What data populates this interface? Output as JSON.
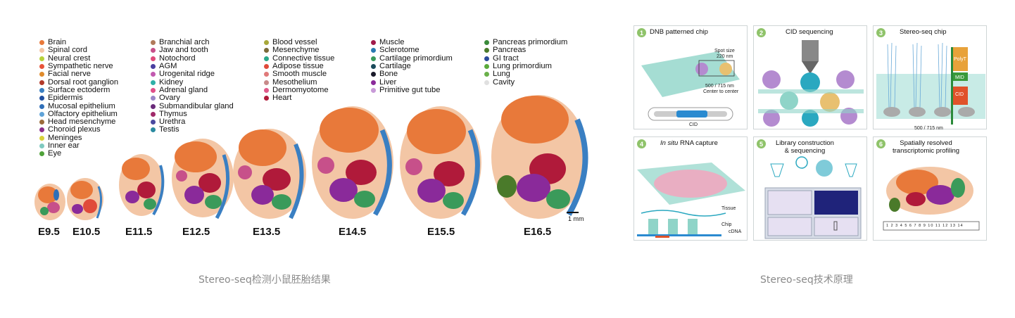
{
  "left_figure": {
    "legend_columns": [
      [
        {
          "label": "Brain",
          "color": "#e8793a"
        },
        {
          "label": "Spinal cord",
          "color": "#f3c6a5"
        },
        {
          "label": "Neural crest",
          "color": "#b7d23a"
        },
        {
          "label": "Sympathetic nerve",
          "color": "#e8543a"
        },
        {
          "label": "Facial nerve",
          "color": "#e08b2c"
        },
        {
          "label": "Dorsal root ganglion",
          "color": "#b23a2a"
        },
        {
          "label": "Surface ectoderm",
          "color": "#3a7fc2"
        },
        {
          "label": "Epidermis",
          "color": "#1f4fa0"
        },
        {
          "label": "Mucosal epithelium",
          "color": "#2f6fb8"
        },
        {
          "label": "Olfactory epithelium",
          "color": "#5fa3d8"
        },
        {
          "label": "Head mesenchyme",
          "color": "#9b6b3a"
        },
        {
          "label": "Choroid plexus",
          "color": "#8a2f8a"
        },
        {
          "label": "Meninges",
          "color": "#d8d23a"
        },
        {
          "label": "Inner ear",
          "color": "#7fc9c0"
        },
        {
          "label": "Eye",
          "color": "#4fa23a"
        }
      ],
      [
        {
          "label": "Branchial arch",
          "color": "#b07a5a"
        },
        {
          "label": "Jaw and tooth",
          "color": "#c7508a"
        },
        {
          "label": "Notochord",
          "color": "#e04a7a"
        },
        {
          "label": "AGM",
          "color": "#4a3fa0"
        },
        {
          "label": "Urogenital ridge",
          "color": "#c25ab0"
        },
        {
          "label": "Kidney",
          "color": "#2fb0a8"
        },
        {
          "label": "Adrenal gland",
          "color": "#e0508a"
        },
        {
          "label": "Ovary",
          "color": "#9a86c8"
        },
        {
          "label": "Submandibular gland",
          "color": "#6a2a7a"
        },
        {
          "label": "Thymus",
          "color": "#a02a6a"
        },
        {
          "label": "Urethra",
          "color": "#4a4aa0"
        },
        {
          "label": "Testis",
          "color": "#2a8aa0"
        }
      ],
      [
        {
          "label": "Blood vessel",
          "color": "#a8a83a"
        },
        {
          "label": "Mesenchyme",
          "color": "#7a6a3a"
        },
        {
          "label": "Connective tissue",
          "color": "#2aa88a"
        },
        {
          "label": "Adipose tissue",
          "color": "#e04a3a"
        },
        {
          "label": "Smooth muscle",
          "color": "#e07a7a"
        },
        {
          "label": "Mesothelium",
          "color": "#c88a8a"
        },
        {
          "label": "Dermomyotome",
          "color": "#e05a8a"
        },
        {
          "label": "Heart",
          "color": "#b01a3a"
        }
      ],
      [
        {
          "label": "Muscle",
          "color": "#a01a4a"
        },
        {
          "label": "Sclerotome",
          "color": "#2a7ab0"
        },
        {
          "label": "Cartilage primordium",
          "color": "#3a9a5a"
        },
        {
          "label": "Cartilage",
          "color": "#1a4a5a"
        },
        {
          "label": "Bone",
          "color": "#1a1a2a"
        },
        {
          "label": "Liver",
          "color": "#8a2a9a"
        },
        {
          "label": "Primitive gut tube",
          "color": "#c89ad8"
        }
      ],
      [
        {
          "label": "Pancreas primordium",
          "color": "#3a8a3a"
        },
        {
          "label": "Pancreas",
          "color": "#4a7a2a"
        },
        {
          "label": "GI tract",
          "color": "#2a4a9a"
        },
        {
          "label": "Lung primordium",
          "color": "#5aaa3a"
        },
        {
          "label": "Lung",
          "color": "#6ab04a"
        },
        {
          "label": "Cavity",
          "color": "#e0e0e0"
        }
      ]
    ],
    "stages": [
      "E9.5",
      "E10.5",
      "E11.5",
      "E12.5",
      "E13.5",
      "E14.5",
      "E15.5",
      "E16.5"
    ],
    "scale_bar_label": "1 mm"
  },
  "left_caption": "Stereo-seq检测小鼠胚胎结果",
  "right_figure": {
    "panels": [
      {
        "number": "1",
        "title": "DNB patterned chip",
        "notes": [
          "Spot size",
          "220 nm",
          "500 / 715 nm",
          "Center to center",
          "CID"
        ]
      },
      {
        "number": "2",
        "title": "CID sequencing",
        "notes": []
      },
      {
        "number": "3",
        "title": "Stereo-seq chip",
        "notes": [
          "PolyT",
          "MID",
          "CID",
          "500 / 715 nm"
        ]
      },
      {
        "number": "4",
        "title_italic": "In situ",
        "title_rest": " RNA capture",
        "notes": [
          "Tissue",
          "Chip",
          "cDNA"
        ]
      },
      {
        "number": "5",
        "title_line1": "Library construction",
        "title_line2": "& sequencing",
        "notes": []
      },
      {
        "number": "6",
        "title_line1": "Spatially resolved",
        "title_line2": "transcriptomic profiling",
        "ruler": "1 2 3 4 5 6 7 8 9 10 11 12 13 14"
      }
    ]
  },
  "right_caption": "Stereo-seq技术原理"
}
